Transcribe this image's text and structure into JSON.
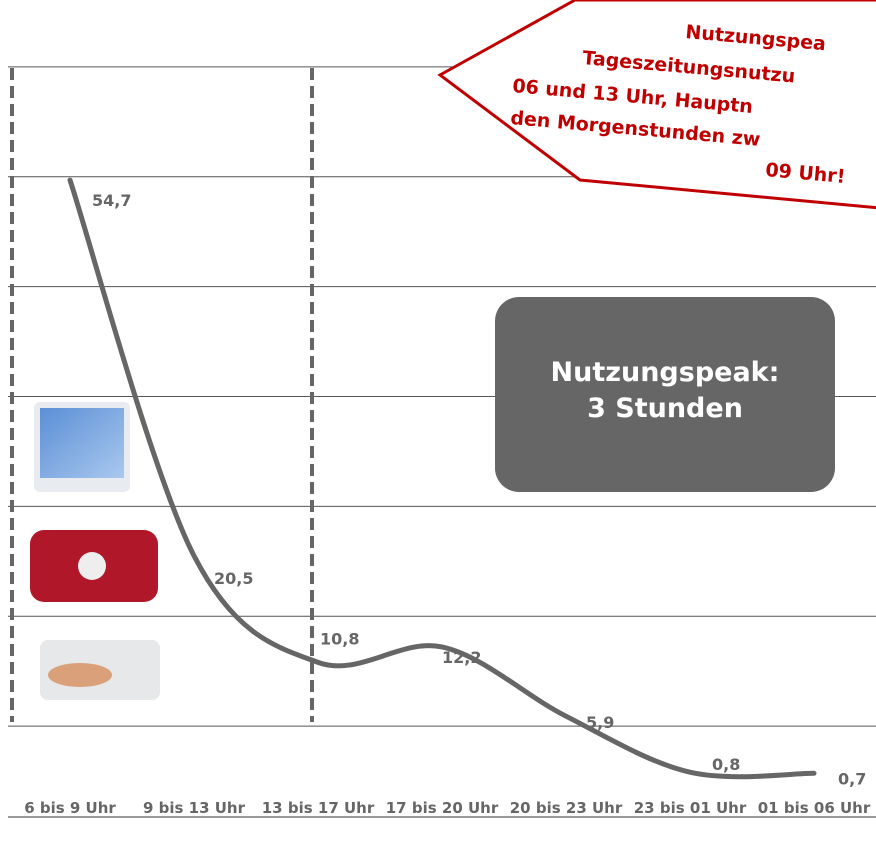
{
  "chart_data": {
    "type": "line",
    "categories": [
      "6 bis 9 Uhr",
      "9 bis 13 Uhr",
      "13 bis 17 Uhr",
      "17 bis 20 Uhr",
      "20 bis 23 Uhr",
      "23 bis 01 Uhr",
      "01 bis 06 Uhr"
    ],
    "values": [
      54.7,
      20.5,
      10.8,
      12.2,
      5.9,
      0.8,
      0.7
    ],
    "value_labels": [
      "54,7",
      "20,5",
      "10,8",
      "12,2",
      "5,9",
      "0,8",
      "0,7"
    ],
    "color": "#666666",
    "ylim": [
      0,
      70
    ],
    "yticks": [
      5,
      15,
      25,
      35,
      45,
      55,
      65
    ],
    "grid": true,
    "annotations": {
      "peak_box": [
        "Nutzungspeak:",
        "3 Stunden"
      ],
      "callout": [
        "Nutzungspea",
        "Tageszeitungsnutzu",
        "06 und 13 Uhr, Hauptn",
        "den Morgenstunden zw",
        "09 Uhr!"
      ]
    }
  }
}
